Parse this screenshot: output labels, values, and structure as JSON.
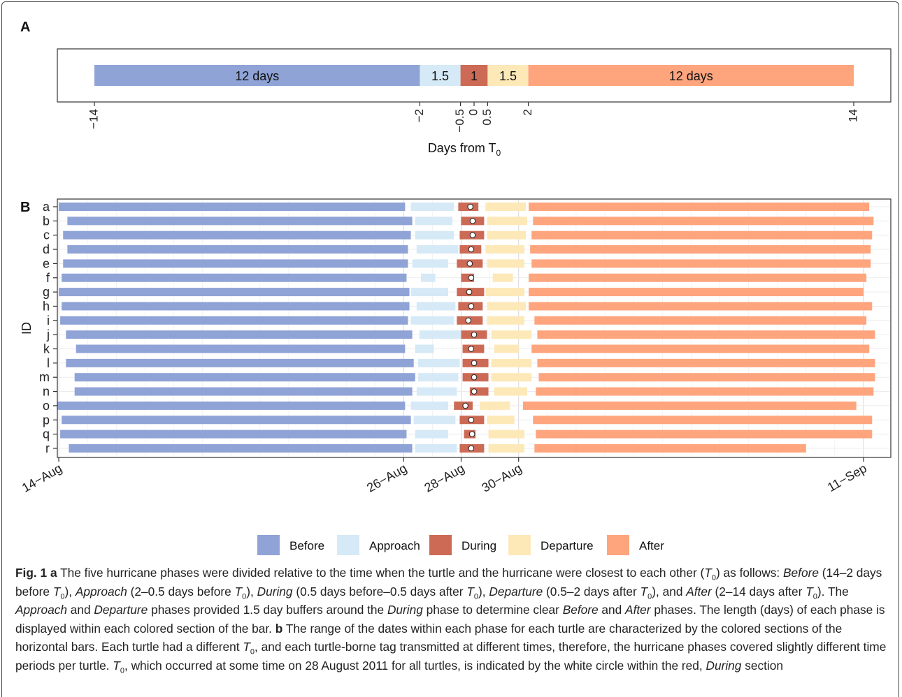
{
  "panel_a_label": "A",
  "panel_b_label": "B",
  "caption": {
    "fig_label": "Fig. 1",
    "a_label": "a",
    "b_label": "b",
    "a_text": "The five hurricane phases were divided relative to the time when the turtle and the hurricane were closest to each other (T0) as follows: Before (14–2 days before T0), Approach (2–0.5 days before T0), During (0.5 days before–0.5 days after T0), Departure (0.5–2 days after T0), and After (2–14 days after T0). The Approach and Departure phases provided 1.5 day buffers around the During phase to determine clear Before and After phases. The length (days) of each phase is displayed within each colored section of the bar.",
    "b_text": "The range of the dates within each phase for each turtle are characterized by the colored sections of the horizontal bars. Each turtle had a different T0, and each turtle-borne tag transmitted at different times, therefore, the hurricane phases covered slightly different time periods per turtle. T0, which occurred at some time on 28 August 2011 for all turtles, is indicated by the white circle within the red, During section"
  },
  "colors": {
    "Before": "#8fa3d6",
    "Approach": "#d6e9f6",
    "During": "#cc6a55",
    "Departure": "#fde8b8",
    "After": "#fea57e"
  },
  "chart_data": [
    {
      "type": "bar",
      "orientation": "horizontal-stacked",
      "panel": "A",
      "xlabel": "Days from T",
      "xlabel_subscript": "0",
      "xlim": [
        -14,
        14
      ],
      "xticks": [
        -14,
        -2,
        -0.5,
        0,
        0.5,
        2,
        14
      ],
      "xtick_labels": [
        "−14",
        "−2",
        "−0.5",
        "0",
        "0.5",
        "2",
        "14"
      ],
      "segments": [
        {
          "phase": "Before",
          "start": -14,
          "end": -2,
          "label": "12 days"
        },
        {
          "phase": "Approach",
          "start": -2,
          "end": -0.5,
          "label": "1.5"
        },
        {
          "phase": "During",
          "start": -0.5,
          "end": 0.5,
          "label": "1"
        },
        {
          "phase": "Departure",
          "start": 0.5,
          "end": 2,
          "label": "1.5"
        },
        {
          "phase": "After",
          "start": 2,
          "end": 14,
          "label": "12 days"
        }
      ]
    },
    {
      "type": "bar",
      "orientation": "horizontal-range",
      "panel": "B",
      "ylabel": "ID",
      "x_unit": "days (Aug 2011; 32 = 1 Sep)",
      "xlim": [
        13.95,
        42.95
      ],
      "xticks": [
        14,
        26,
        28,
        30,
        42
      ],
      "xtick_labels": [
        "14−Aug",
        "26−Aug",
        "28−Aug",
        "30−Aug",
        "11−Sep"
      ],
      "grid": true,
      "legend_position": "bottom",
      "legend": [
        "Before",
        "Approach",
        "During",
        "Departure",
        "After"
      ],
      "ids": [
        "a",
        "b",
        "c",
        "d",
        "e",
        "f",
        "g",
        "h",
        "i",
        "j",
        "k",
        "l",
        "m",
        "n",
        "o",
        "p",
        "q",
        "r"
      ],
      "rows": [
        {
          "id": "a",
          "t0": 28.32,
          "phases": [
            [
              14.0,
              26.05
            ],
            [
              26.25,
              27.75
            ],
            [
              27.9,
              28.6
            ],
            [
              28.85,
              30.25
            ],
            [
              30.35,
              42.2
            ]
          ]
        },
        {
          "id": "b",
          "t0": 28.4,
          "phases": [
            [
              14.3,
              26.3
            ],
            [
              26.4,
              27.7
            ],
            [
              28.0,
              28.8
            ],
            [
              28.9,
              30.3
            ],
            [
              30.5,
              42.35
            ]
          ]
        },
        {
          "id": "c",
          "t0": 28.4,
          "phases": [
            [
              14.15,
              26.25
            ],
            [
              26.4,
              27.75
            ],
            [
              27.95,
              28.8
            ],
            [
              28.9,
              30.25
            ],
            [
              30.45,
              42.3
            ]
          ]
        },
        {
          "id": "d",
          "t0": 28.35,
          "phases": [
            [
              14.3,
              26.15
            ],
            [
              26.45,
              27.9
            ],
            [
              27.95,
              28.7
            ],
            [
              28.85,
              30.2
            ],
            [
              30.4,
              42.25
            ]
          ]
        },
        {
          "id": "e",
          "t0": 28.3,
          "phases": [
            [
              14.15,
              26.15
            ],
            [
              26.3,
              27.55
            ],
            [
              27.85,
              28.75
            ],
            [
              28.9,
              30.2
            ],
            [
              30.45,
              42.25
            ]
          ]
        },
        {
          "id": "f",
          "t0": 28.35,
          "phases": [
            [
              14.1,
              26.1
            ],
            [
              26.6,
              27.1
            ],
            [
              28.0,
              28.45
            ],
            [
              29.1,
              29.8
            ],
            [
              30.35,
              42.1
            ]
          ]
        },
        {
          "id": "g",
          "t0": 28.28,
          "phases": [
            [
              14.0,
              26.2
            ],
            [
              26.25,
              27.55
            ],
            [
              27.85,
              28.8
            ],
            [
              28.85,
              30.2
            ],
            [
              30.35,
              42.0
            ]
          ]
        },
        {
          "id": "h",
          "t0": 28.35,
          "phases": [
            [
              14.1,
              26.2
            ],
            [
              26.45,
              27.8
            ],
            [
              27.9,
              28.75
            ],
            [
              28.9,
              30.25
            ],
            [
              30.35,
              42.3
            ]
          ]
        },
        {
          "id": "i",
          "t0": 28.25,
          "phases": [
            [
              14.05,
              26.15
            ],
            [
              26.25,
              27.75
            ],
            [
              27.85,
              28.75
            ],
            [
              28.9,
              30.2
            ],
            [
              30.55,
              42.1
            ]
          ]
        },
        {
          "id": "j",
          "t0": 28.45,
          "phases": [
            [
              14.25,
              26.3
            ],
            [
              26.55,
              28.0
            ],
            [
              28.0,
              28.9
            ],
            [
              29.05,
              30.45
            ],
            [
              30.65,
              42.4
            ]
          ]
        },
        {
          "id": "k",
          "t0": 28.35,
          "phases": [
            [
              14.6,
              26.05
            ],
            [
              26.4,
              27.05
            ],
            [
              28.05,
              28.8
            ],
            [
              29.15,
              30.0
            ],
            [
              30.45,
              42.2
            ]
          ]
        },
        {
          "id": "l",
          "t0": 28.45,
          "phases": [
            [
              14.25,
              26.35
            ],
            [
              26.5,
              27.95
            ],
            [
              28.05,
              28.95
            ],
            [
              29.05,
              30.45
            ],
            [
              30.65,
              42.4
            ]
          ]
        },
        {
          "id": "m",
          "t0": 28.45,
          "phases": [
            [
              14.55,
              26.4
            ],
            [
              26.5,
              27.9
            ],
            [
              28.05,
              28.95
            ],
            [
              29.05,
              30.45
            ],
            [
              30.7,
              42.4
            ]
          ]
        },
        {
          "id": "n",
          "t0": 28.45,
          "phases": [
            [
              14.55,
              26.3
            ],
            [
              26.45,
              27.85
            ],
            [
              28.3,
              28.95
            ],
            [
              29.15,
              30.3
            ],
            [
              30.6,
              42.35
            ]
          ]
        },
        {
          "id": "o",
          "t0": 28.15,
          "phases": [
            [
              13.95,
              26.05
            ],
            [
              26.25,
              27.55
            ],
            [
              27.75,
              28.4
            ],
            [
              28.65,
              29.7
            ],
            [
              30.15,
              41.75
            ]
          ]
        },
        {
          "id": "p",
          "t0": 28.35,
          "phases": [
            [
              14.1,
              26.25
            ],
            [
              26.35,
              27.8
            ],
            [
              27.95,
              28.8
            ],
            [
              28.9,
              29.85
            ],
            [
              30.5,
              42.3
            ]
          ]
        },
        {
          "id": "q",
          "t0": 28.38,
          "phases": [
            [
              14.05,
              26.1
            ],
            [
              26.4,
              27.55
            ],
            [
              28.1,
              28.5
            ],
            [
              28.95,
              30.2
            ],
            [
              30.6,
              42.3
            ]
          ]
        },
        {
          "id": "r",
          "t0": 28.35,
          "phases": [
            [
              14.35,
              26.3
            ],
            [
              26.4,
              27.85
            ],
            [
              27.95,
              28.8
            ],
            [
              28.95,
              30.2
            ],
            [
              30.55,
              40.0
            ]
          ]
        }
      ]
    }
  ]
}
